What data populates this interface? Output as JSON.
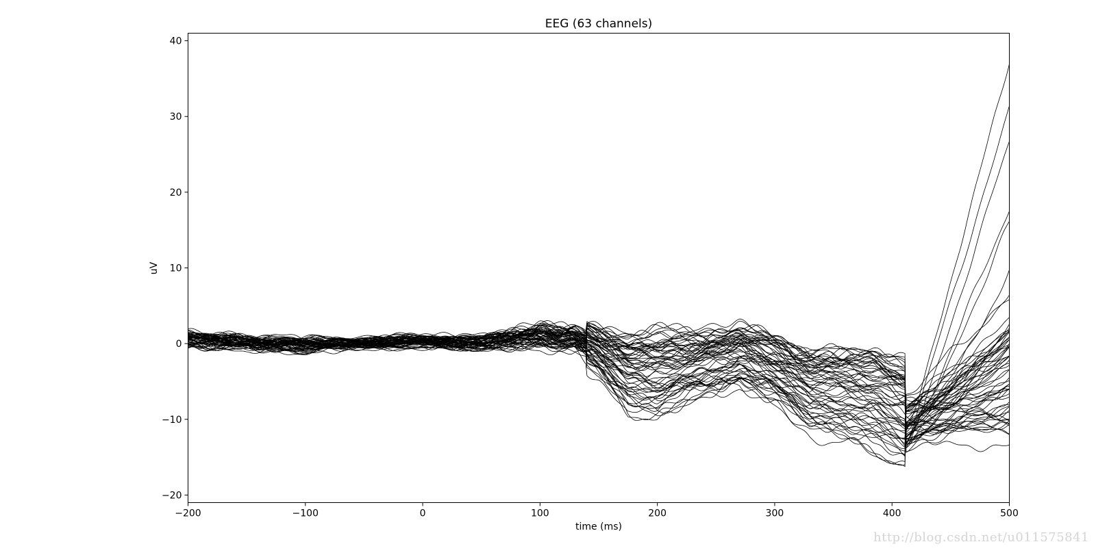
{
  "chart_data": {
    "type": "line",
    "title": "EEG (63 channels)",
    "xlabel": "time (ms)",
    "ylabel": "uV",
    "xlim": [
      -200,
      500
    ],
    "ylim": [
      -21,
      41
    ],
    "xticks": [
      -200,
      -100,
      0,
      100,
      200,
      300,
      400,
      500
    ],
    "xtick_labels": [
      "−200",
      "−100",
      "0",
      "100",
      "200",
      "300",
      "400",
      "500"
    ],
    "yticks": [
      -20,
      -10,
      0,
      10,
      20,
      30,
      40
    ],
    "ytick_labels": [
      "−20",
      "−10",
      "0",
      "10",
      "20",
      "30",
      "40"
    ],
    "grid": false,
    "legend": "none",
    "line_color": "#000000",
    "n_channels": 63,
    "series_shape": {
      "x": [
        -200,
        -150,
        -100,
        -50,
        0,
        50,
        100,
        130,
        150,
        175,
        200,
        230,
        270,
        300,
        330,
        360,
        390,
        412,
        440,
        470,
        500
      ],
      "band_min": [
        -1.5,
        -2,
        -2,
        -1.5,
        -1.5,
        -2,
        -2,
        -2.5,
        -5,
        -10,
        -11,
        -9,
        -6.5,
        -9,
        -13,
        -14,
        -16,
        -18,
        -15,
        -13,
        -13.5
      ],
      "band_max": [
        2.5,
        2,
        1.5,
        1.5,
        2,
        2,
        4,
        3.5,
        2.5,
        2,
        2.5,
        2.5,
        3,
        2,
        0.5,
        0.5,
        0.5,
        -0.5,
        10,
        25,
        38
      ],
      "extreme_end_values": [
        38,
        31.5,
        26.5,
        17.5,
        15.5,
        9.5,
        6.5,
        6,
        2.5,
        -13.5
      ]
    }
  },
  "watermark": "http://blog.csdn.net/u011575841"
}
